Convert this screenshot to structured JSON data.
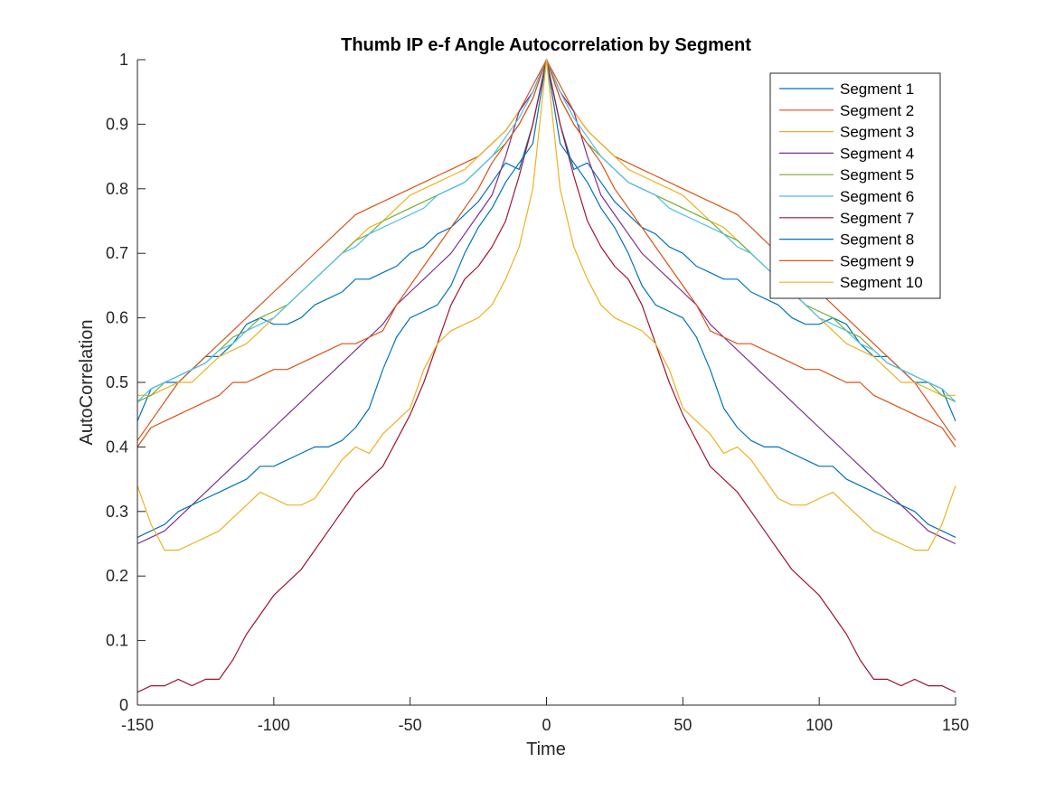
{
  "chart_data": {
    "type": "line",
    "title": "Thumb IP e-f Angle Autocorrelation by Segment",
    "xlabel": "Time",
    "ylabel": "AutoCorrelation",
    "xlim": [
      -150,
      150
    ],
    "ylim": [
      0,
      1
    ],
    "xticks": [
      -150,
      -100,
      -50,
      0,
      50,
      100,
      150
    ],
    "yticks": [
      0,
      0.1,
      0.2,
      0.3,
      0.4,
      0.5,
      0.6,
      0.7,
      0.8,
      0.9,
      1
    ],
    "xtick_labels": [
      "-150",
      "-100",
      "-50",
      "0",
      "50",
      "100",
      "150"
    ],
    "ytick_labels": [
      "0",
      "0.1",
      "0.2",
      "0.3",
      "0.4",
      "0.5",
      "0.6",
      "0.7",
      "0.8",
      "0.9",
      "1"
    ],
    "grid": false,
    "legend_position": "top-right",
    "symmetric_about_zero": true,
    "lag_x": [
      0,
      5,
      10,
      15,
      20,
      25,
      30,
      35,
      40,
      45,
      50,
      55,
      60,
      65,
      70,
      75,
      80,
      85,
      90,
      95,
      100,
      105,
      110,
      115,
      120,
      125,
      130,
      135,
      140,
      145,
      150
    ],
    "series": [
      {
        "name": "Segment 1",
        "color": "#0072BD",
        "values": [
          1.0,
          0.9,
          0.83,
          0.84,
          0.81,
          0.78,
          0.76,
          0.74,
          0.73,
          0.71,
          0.7,
          0.68,
          0.67,
          0.66,
          0.66,
          0.64,
          0.63,
          0.62,
          0.6,
          0.59,
          0.59,
          0.6,
          0.59,
          0.56,
          0.54,
          0.54,
          0.52,
          0.5,
          0.5,
          0.49,
          0.44
        ]
      },
      {
        "name": "Segment 2",
        "color": "#D95319",
        "values": [
          1.0,
          0.96,
          0.92,
          0.89,
          0.87,
          0.85,
          0.84,
          0.83,
          0.82,
          0.81,
          0.8,
          0.79,
          0.78,
          0.77,
          0.76,
          0.74,
          0.72,
          0.7,
          0.68,
          0.66,
          0.64,
          0.62,
          0.6,
          0.58,
          0.56,
          0.54,
          0.52,
          0.5,
          0.47,
          0.44,
          0.41
        ]
      },
      {
        "name": "Segment 3",
        "color": "#EDB120",
        "values": [
          1.0,
          0.95,
          0.92,
          0.89,
          0.87,
          0.85,
          0.83,
          0.82,
          0.81,
          0.8,
          0.79,
          0.77,
          0.75,
          0.74,
          0.72,
          0.7,
          0.68,
          0.66,
          0.64,
          0.62,
          0.6,
          0.58,
          0.56,
          0.55,
          0.54,
          0.52,
          0.5,
          0.5,
          0.49,
          0.48,
          0.48
        ]
      },
      {
        "name": "Segment 4",
        "color": "#7E2F8E",
        "values": [
          1.0,
          0.95,
          0.92,
          0.85,
          0.79,
          0.76,
          0.73,
          0.7,
          0.68,
          0.66,
          0.64,
          0.62,
          0.59,
          0.57,
          0.55,
          0.53,
          0.51,
          0.49,
          0.47,
          0.45,
          0.43,
          0.41,
          0.39,
          0.37,
          0.35,
          0.33,
          0.31,
          0.29,
          0.27,
          0.26,
          0.25
        ]
      },
      {
        "name": "Segment 5",
        "color": "#77AC30",
        "values": [
          1.0,
          0.94,
          0.9,
          0.87,
          0.85,
          0.83,
          0.81,
          0.8,
          0.79,
          0.78,
          0.77,
          0.76,
          0.75,
          0.73,
          0.72,
          0.7,
          0.68,
          0.66,
          0.64,
          0.62,
          0.61,
          0.6,
          0.58,
          0.57,
          0.55,
          0.53,
          0.52,
          0.51,
          0.5,
          0.48,
          0.47
        ]
      },
      {
        "name": "Segment 6",
        "color": "#4DBEEE",
        "values": [
          1.0,
          0.95,
          0.91,
          0.88,
          0.85,
          0.83,
          0.81,
          0.8,
          0.79,
          0.77,
          0.76,
          0.75,
          0.74,
          0.73,
          0.71,
          0.7,
          0.68,
          0.66,
          0.64,
          0.62,
          0.6,
          0.59,
          0.58,
          0.56,
          0.55,
          0.53,
          0.52,
          0.51,
          0.5,
          0.49,
          0.47
        ]
      },
      {
        "name": "Segment 7",
        "color": "#A2142F",
        "values": [
          1.0,
          0.9,
          0.82,
          0.75,
          0.71,
          0.68,
          0.66,
          0.62,
          0.56,
          0.5,
          0.45,
          0.41,
          0.37,
          0.35,
          0.33,
          0.3,
          0.27,
          0.24,
          0.21,
          0.19,
          0.17,
          0.14,
          0.11,
          0.07,
          0.04,
          0.04,
          0.03,
          0.04,
          0.03,
          0.03,
          0.02
        ]
      },
      {
        "name": "Segment 8",
        "color": "#0072BD",
        "values": [
          1.0,
          0.87,
          0.84,
          0.81,
          0.77,
          0.74,
          0.7,
          0.65,
          0.62,
          0.61,
          0.6,
          0.57,
          0.52,
          0.46,
          0.43,
          0.41,
          0.4,
          0.4,
          0.39,
          0.38,
          0.37,
          0.37,
          0.35,
          0.34,
          0.33,
          0.32,
          0.31,
          0.3,
          0.28,
          0.27,
          0.26
        ]
      },
      {
        "name": "Segment 9",
        "color": "#D95319",
        "values": [
          1.0,
          0.94,
          0.9,
          0.87,
          0.84,
          0.8,
          0.77,
          0.74,
          0.71,
          0.68,
          0.65,
          0.62,
          0.58,
          0.57,
          0.56,
          0.56,
          0.55,
          0.54,
          0.53,
          0.52,
          0.52,
          0.51,
          0.5,
          0.5,
          0.48,
          0.47,
          0.46,
          0.45,
          0.44,
          0.43,
          0.4
        ]
      },
      {
        "name": "Segment 10",
        "color": "#EDB120",
        "values": [
          1.0,
          0.8,
          0.71,
          0.66,
          0.62,
          0.6,
          0.59,
          0.58,
          0.56,
          0.52,
          0.46,
          0.44,
          0.42,
          0.39,
          0.4,
          0.38,
          0.35,
          0.32,
          0.31,
          0.31,
          0.32,
          0.33,
          0.31,
          0.29,
          0.27,
          0.26,
          0.25,
          0.24,
          0.24,
          0.28,
          0.34
        ]
      }
    ]
  }
}
